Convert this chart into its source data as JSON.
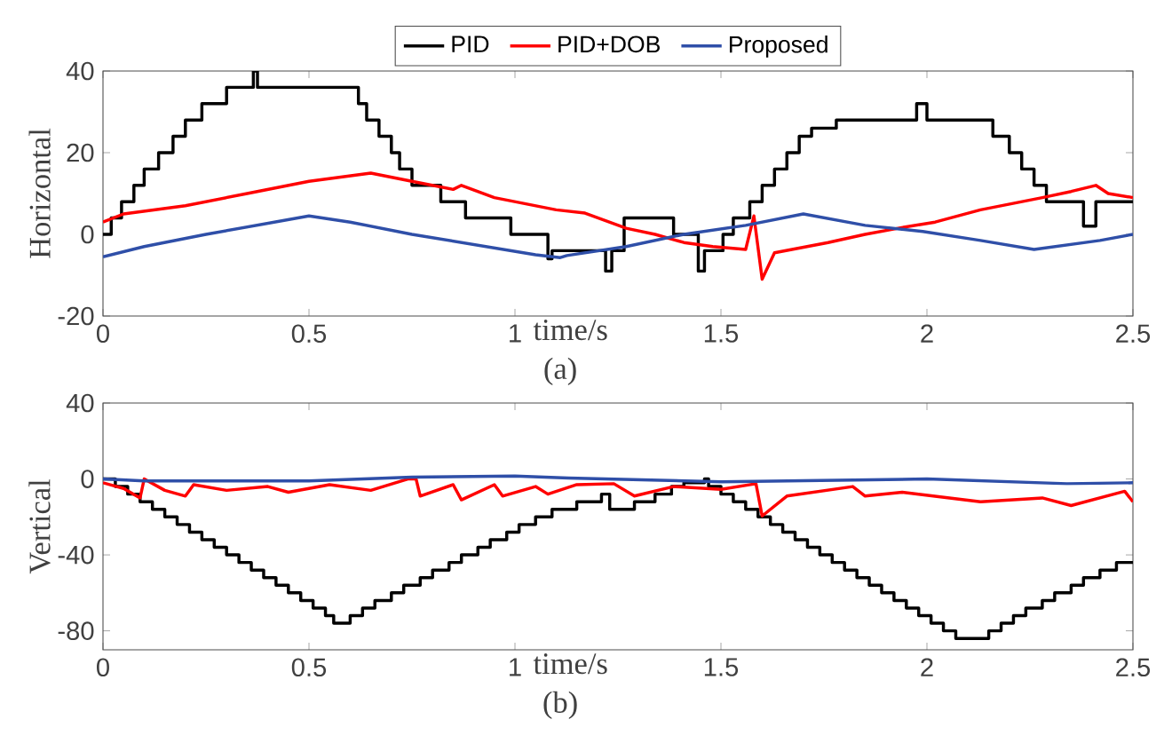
{
  "chart_data": [
    {
      "type": "line",
      "ylabel": "Horizontal",
      "xlabel": "time/s",
      "annotations": [
        "(a)"
      ],
      "xlim": [
        0,
        2.5
      ],
      "xticks": [
        0,
        0.5,
        1,
        1.5,
        2,
        2.5
      ],
      "ylim": [
        -20,
        40
      ],
      "yticks": [
        -20,
        0,
        20,
        40
      ],
      "legend": "top",
      "series": [
        {
          "name": "PID",
          "color": "#000000",
          "type": "step",
          "x": [
            0,
            0.02,
            0.045,
            0.075,
            0.1,
            0.135,
            0.17,
            0.2,
            0.24,
            0.3,
            0.365,
            0.375,
            0.62,
            0.64,
            0.67,
            0.7,
            0.72,
            0.75,
            0.82,
            0.88,
            0.99,
            1.08,
            1.09,
            1.22,
            1.235,
            1.265,
            1.385,
            1.445,
            1.46,
            1.505,
            1.53,
            1.57,
            1.6,
            1.63,
            1.66,
            1.69,
            1.72,
            1.78,
            1.975,
            2.0,
            2.16,
            2.2,
            2.23,
            2.26,
            2.29,
            2.38,
            2.41,
            2.5
          ],
          "values": [
            0,
            4,
            8,
            12,
            16,
            20,
            24,
            28,
            32,
            36,
            40,
            36,
            32,
            28,
            24,
            20,
            16,
            12,
            8,
            4,
            0,
            -6,
            -4,
            -9,
            -4,
            4,
            0,
            -9,
            -4,
            0,
            4,
            8,
            12,
            16,
            20,
            24,
            26,
            28,
            32,
            28,
            24,
            20,
            16,
            12,
            8,
            2,
            8,
            8
          ]
        },
        {
          "name": "PID+DOB",
          "color": "#ff0000",
          "x": [
            0,
            0.05,
            0.2,
            0.35,
            0.5,
            0.65,
            0.75,
            0.85,
            0.87,
            0.95,
            1.1,
            1.17,
            1.27,
            1.34,
            1.41,
            1.48,
            1.56,
            1.58,
            1.6,
            1.63,
            1.76,
            1.85,
            1.93,
            2.02,
            2.13,
            2.28,
            2.35,
            2.41,
            2.44,
            2.5
          ],
          "values": [
            3,
            5,
            7,
            10,
            13,
            15,
            13,
            11,
            12,
            9,
            6,
            5.2,
            1.5,
            0,
            -2,
            -3,
            -3.7,
            4.5,
            -11,
            -4.5,
            -2,
            0,
            1.5,
            3,
            6,
            9,
            10.5,
            12,
            10,
            9
          ]
        },
        {
          "name": "Proposed",
          "color": "#2f4fa8",
          "x": [
            0,
            0.1,
            0.25,
            0.5,
            0.6,
            0.75,
            0.9,
            1.05,
            1.11,
            1.126,
            1.27,
            1.41,
            1.56,
            1.7,
            1.85,
            1.99,
            2.13,
            2.26,
            2.42,
            2.5
          ],
          "values": [
            -5.5,
            -3,
            0,
            4.5,
            3,
            0,
            -2.5,
            -5,
            -5.7,
            -5.2,
            -3,
            0,
            2.2,
            5,
            2.2,
            0.7,
            -1.5,
            -3.7,
            -1.5,
            0
          ]
        }
      ]
    },
    {
      "type": "line",
      "ylabel": "Vertical",
      "xlabel": "time/s",
      "annotations": [
        "(b)"
      ],
      "xlim": [
        0,
        2.5
      ],
      "xticks": [
        0,
        0.5,
        1,
        1.5,
        2,
        2.5
      ],
      "ylim": [
        -90,
        40
      ],
      "yticks": [
        -80,
        -40,
        0,
        40
      ],
      "series": [
        {
          "color": "#000000",
          "type": "step",
          "x": [
            0,
            0.03,
            0.06,
            0.09,
            0.12,
            0.15,
            0.18,
            0.21,
            0.24,
            0.27,
            0.3,
            0.33,
            0.36,
            0.39,
            0.42,
            0.45,
            0.48,
            0.51,
            0.54,
            0.56,
            0.6,
            0.63,
            0.66,
            0.7,
            0.73,
            0.77,
            0.8,
            0.84,
            0.87,
            0.91,
            0.94,
            0.98,
            1.01,
            1.05,
            1.09,
            1.15,
            1.21,
            1.23,
            1.29,
            1.34,
            1.38,
            1.41,
            1.46,
            1.47,
            1.5,
            1.53,
            1.56,
            1.59,
            1.62,
            1.65,
            1.68,
            1.71,
            1.74,
            1.77,
            1.8,
            1.83,
            1.86,
            1.89,
            1.92,
            1.95,
            1.98,
            2.01,
            2.04,
            2.07,
            2.15,
            2.18,
            2.21,
            2.24,
            2.28,
            2.31,
            2.35,
            2.38,
            2.42,
            2.46,
            2.5
          ],
          "values": [
            0,
            -4,
            -8,
            -12,
            -16,
            -20,
            -24,
            -28,
            -32,
            -36,
            -40,
            -44,
            -48,
            -52,
            -56,
            -60,
            -64,
            -68,
            -72,
            -76,
            -72,
            -68,
            -64,
            -60,
            -56,
            -52,
            -48,
            -44,
            -40,
            -36,
            -32,
            -28,
            -24,
            -20,
            -16,
            -12,
            -8,
            -16,
            -12,
            -8,
            -4,
            -2,
            0,
            -4,
            -8,
            -12,
            -16,
            -20,
            -24,
            -28,
            -32,
            -36,
            -40,
            -44,
            -48,
            -52,
            -56,
            -60,
            -64,
            -68,
            -72,
            -76,
            -80,
            -84,
            -80,
            -76,
            -72,
            -68,
            -64,
            -60,
            -56,
            -52,
            -48,
            -44,
            -44
          ]
        },
        {
          "color": "#ff0000",
          "x": [
            0,
            0.05,
            0.09,
            0.1,
            0.15,
            0.2,
            0.22,
            0.3,
            0.4,
            0.45,
            0.55,
            0.65,
            0.74,
            0.76,
            0.77,
            0.85,
            0.87,
            0.95,
            0.97,
            1.05,
            1.08,
            1.15,
            1.24,
            1.29,
            1.385,
            1.5,
            1.585,
            1.6,
            1.66,
            1.82,
            1.85,
            1.94,
            2.13,
            2.28,
            2.35,
            2.48,
            2.5
          ],
          "values": [
            -2,
            -5,
            -10,
            0,
            -6,
            -9,
            -3,
            -6,
            -4,
            -7,
            -3,
            -6,
            0,
            0,
            -9,
            -3,
            -11,
            -3,
            -9,
            -4,
            -8,
            -3,
            -2.5,
            -9,
            -4,
            -5.5,
            -2.5,
            -19.5,
            -9,
            -4,
            -9,
            -7,
            -12,
            -10,
            -14,
            -6.5,
            -12
          ]
        },
        {
          "color": "#2f4fa8",
          "x": [
            0,
            0.1,
            0.3,
            0.5,
            0.75,
            1.0,
            1.13,
            1.5,
            2.0,
            2.34,
            2.5
          ],
          "values": [
            0,
            -1,
            -1,
            -1,
            1,
            1.5,
            0.5,
            -1.5,
            0,
            -2.5,
            -2
          ]
        }
      ]
    }
  ]
}
